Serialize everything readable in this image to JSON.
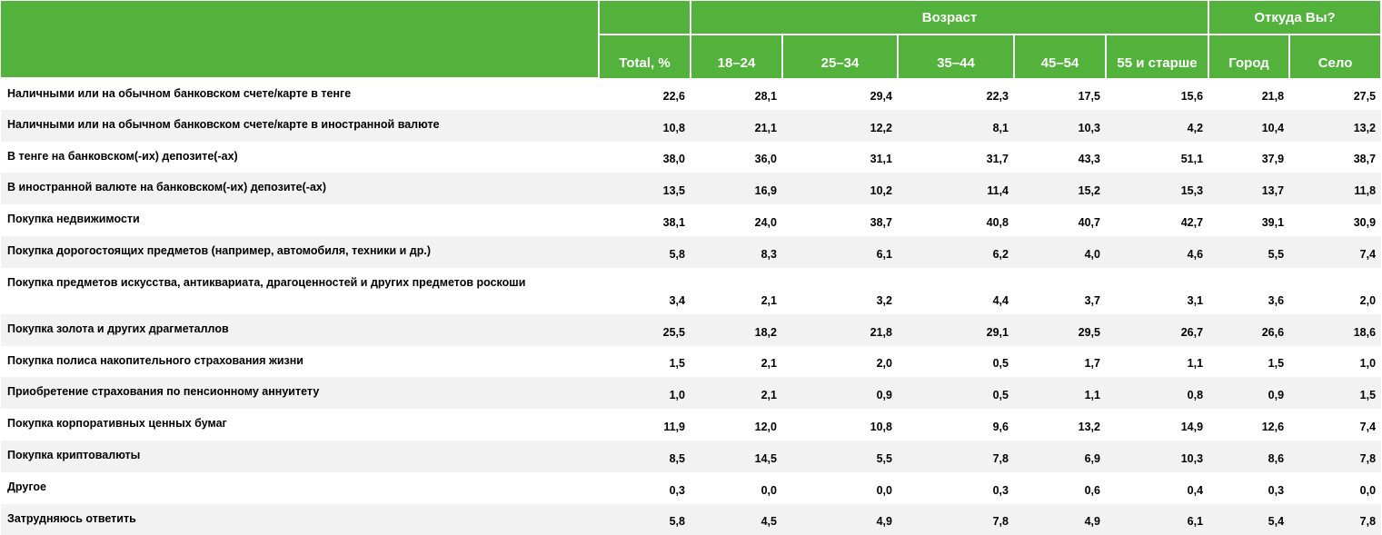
{
  "header": {
    "group_age": "Возраст",
    "group_origin": "Откуда Вы?",
    "columns": [
      "Total, %",
      "18–24",
      "25–34",
      "35–44",
      "45–54",
      "55 и старше",
      "Город",
      "Село"
    ]
  },
  "rows": [
    {
      "label": "Наличными или на обычном банковском счете/карте в тенге",
      "values": [
        "22,6",
        "28,1",
        "29,4",
        "22,3",
        "17,5",
        "15,6",
        "21,8",
        "27,5"
      ]
    },
    {
      "label": "Наличными или на обычном банковском счете/карте в иностранной валюте",
      "values": [
        "10,8",
        "21,1",
        "12,2",
        "8,1",
        "10,3",
        "4,2",
        "10,4",
        "13,2"
      ]
    },
    {
      "label": "В тенге на банковском(-их) депозите(-ах)",
      "values": [
        "38,0",
        "36,0",
        "31,1",
        "31,7",
        "43,3",
        "51,1",
        "37,9",
        "38,7"
      ]
    },
    {
      "label": "В иностранной валюте на банковском(-их) депозите(-ах)",
      "values": [
        "13,5",
        "16,9",
        "10,2",
        "11,4",
        "15,2",
        "15,3",
        "13,7",
        "11,8"
      ]
    },
    {
      "label": "Покупка недвижимости",
      "values": [
        "38,1",
        "24,0",
        "38,7",
        "40,8",
        "40,7",
        "42,7",
        "39,1",
        "30,9"
      ]
    },
    {
      "label": "Покупка дорогостоящих предметов (например, автомобиля, техники и др.)",
      "values": [
        "5,8",
        "8,3",
        "6,1",
        "6,2",
        "4,0",
        "4,6",
        "5,5",
        "7,4"
      ]
    },
    {
      "label": "Покупка предметов искусства, антиквариата,  драгоценностей и других предметов роскоши",
      "values": [
        "3,4",
        "2,1",
        "3,2",
        "4,4",
        "3,7",
        "3,1",
        "3,6",
        "2,0"
      ]
    },
    {
      "label": "Покупка золота и других драгметаллов",
      "values": [
        "25,5",
        "18,2",
        "21,8",
        "29,1",
        "29,5",
        "26,7",
        "26,6",
        "18,6"
      ]
    },
    {
      "label": "Покупка полиса накопительного страхования жизни",
      "values": [
        "1,5",
        "2,1",
        "2,0",
        "0,5",
        "1,7",
        "1,1",
        "1,5",
        "1,0"
      ]
    },
    {
      "label": "Приобретение страхования по пенсионному аннуитету",
      "values": [
        "1,0",
        "2,1",
        "0,9",
        "0,5",
        "1,1",
        "0,8",
        "0,9",
        "1,5"
      ]
    },
    {
      "label": "Покупка корпоративных ценных бумаг",
      "values": [
        "11,9",
        "12,0",
        "10,8",
        "9,6",
        "13,2",
        "14,9",
        "12,6",
        "7,4"
      ]
    },
    {
      "label": "Покупка криптовалюты",
      "values": [
        "8,5",
        "14,5",
        "5,5",
        "7,8",
        "6,9",
        "10,3",
        "8,6",
        "7,8"
      ]
    },
    {
      "label": "Другое",
      "values": [
        "0,3",
        "0,0",
        "0,0",
        "0,3",
        "0,6",
        "0,4",
        "0,3",
        "0,0"
      ]
    },
    {
      "label": "Затрудняюсь ответить",
      "values": [
        "5,8",
        "4,5",
        "4,9",
        "7,8",
        "4,9",
        "6,1",
        "5,4",
        "7,8"
      ]
    }
  ]
}
